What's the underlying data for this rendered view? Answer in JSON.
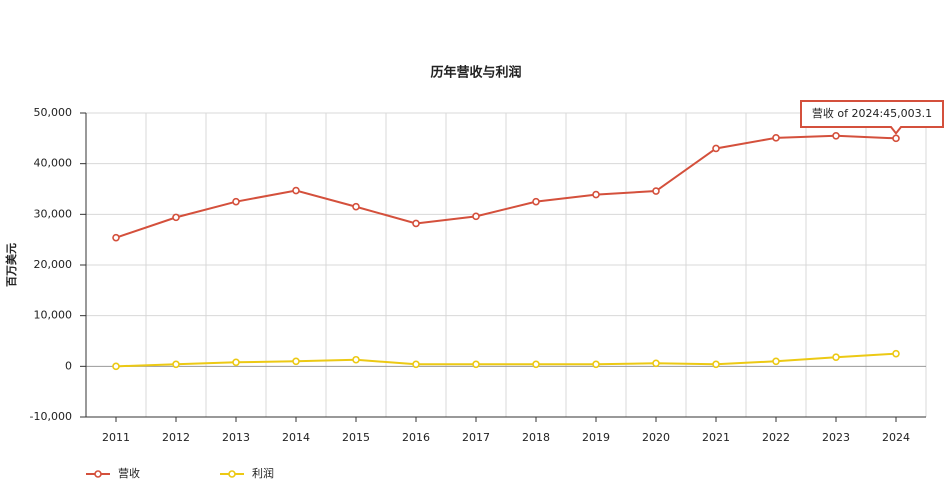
{
  "chart_data": {
    "type": "line",
    "title": "历年营收与利润",
    "y_label": "百万美元",
    "categories": [
      "2011",
      "2012",
      "2013",
      "2014",
      "2015",
      "2016",
      "2017",
      "2018",
      "2019",
      "2020",
      "2021",
      "2022",
      "2023",
      "2024"
    ],
    "series": [
      {
        "name": "营收",
        "color": "#d4503c",
        "values": [
          25400,
          29400,
          32500,
          34700,
          31500,
          28200,
          29600,
          32500,
          33900,
          34600,
          43000,
          45100,
          45500,
          45003.1
        ]
      },
      {
        "name": "利润",
        "color": "#ecc914",
        "values": [
          0,
          400,
          800,
          1000,
          1300,
          400,
          400,
          400,
          400,
          600,
          400,
          1000,
          1800,
          2500
        ]
      }
    ],
    "ylim": [
      -10000,
      50000
    ],
    "yticks": [
      {
        "value": -10000,
        "label": "-10,000"
      },
      0,
      {
        "value": 10000,
        "label": "10,000"
      },
      {
        "value": 20000,
        "label": "20,000"
      },
      {
        "value": 30000,
        "label": "30,000"
      },
      {
        "value": 40000,
        "label": "40,000"
      },
      {
        "value": 50000,
        "label": "50,000"
      }
    ],
    "grid": true,
    "legend": "bottom-left",
    "tooltip": "营收 of 2024:45,003.1"
  }
}
